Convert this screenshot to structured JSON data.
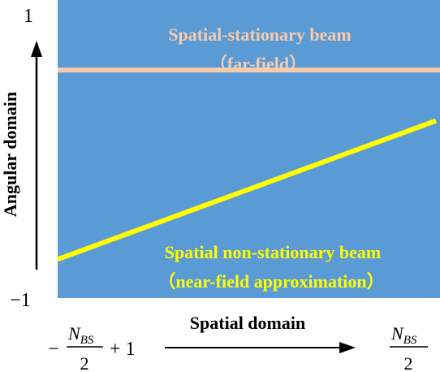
{
  "colors": {
    "panel": "#5b9bd5",
    "stationary_line": "#f8cbad",
    "stationary_text": "#f8cbad",
    "nonstationary_line": "#ffff00",
    "nonstationary_text": "#ffff00",
    "axis": "#000000",
    "text": "#000000"
  },
  "y_axis": {
    "label": "Angular domain",
    "top_tick": "1",
    "bottom_tick": "−1"
  },
  "x_axis": {
    "label": "Spatial domain",
    "left_tick": {
      "sign": "−",
      "numerator": "N",
      "subscript": "BS",
      "denominator": "2",
      "suffix": "+ 1"
    },
    "right_tick": {
      "numerator": "N",
      "subscript": "BS",
      "denominator": "2"
    }
  },
  "stationary_beam": {
    "label_line1": "Spatial-stationary beam",
    "label_line2": "（far-field）",
    "angular_value": 0.53
  },
  "nonstationary_beam": {
    "label_line1": "Spatial non-stationary beam",
    "label_line2": "（near-field approximation）",
    "angular_start": -0.74,
    "angular_end": 0.19
  }
}
